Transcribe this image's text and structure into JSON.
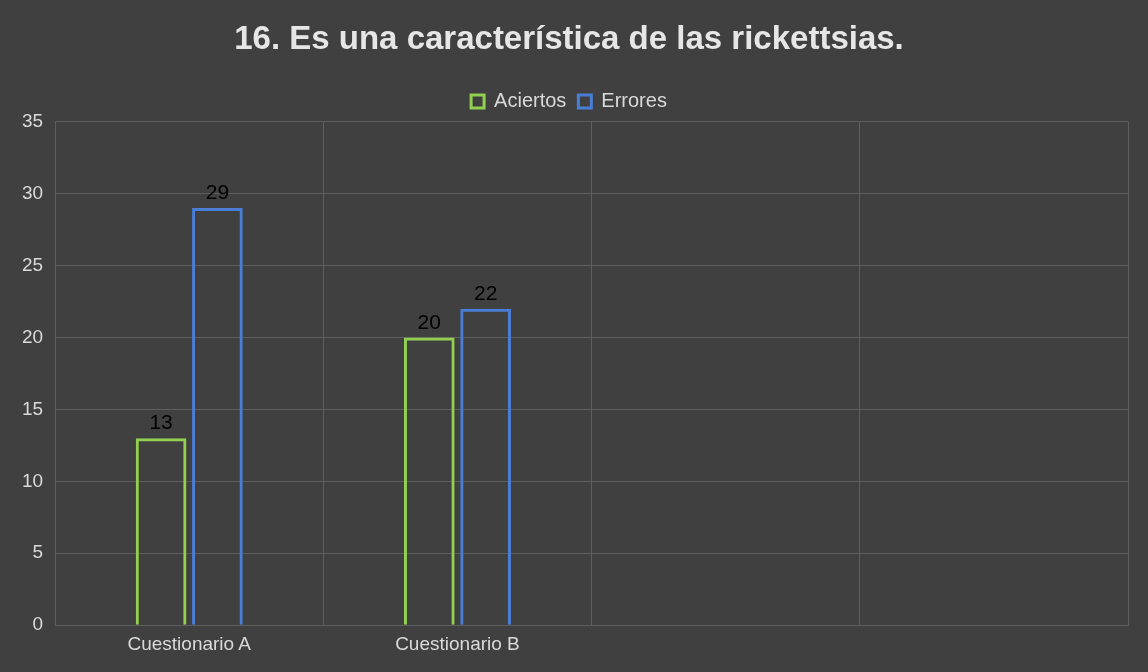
{
  "chart_data": {
    "type": "bar",
    "title": "16. Es una característica de las rickettsias.",
    "categories": [
      "Cuestionario A",
      "Cuestionario B",
      null,
      null
    ],
    "series": [
      {
        "name": "Aciertos",
        "color": "#92d050",
        "values": [
          13,
          20,
          null,
          null
        ]
      },
      {
        "name": "Errores",
        "color": "#4a7ed6",
        "values": [
          29,
          22,
          null,
          null
        ]
      }
    ],
    "ylim": [
      0,
      35
    ],
    "yticks": [
      0,
      5,
      10,
      15,
      20,
      25,
      30,
      35
    ],
    "grid": true,
    "legend": "top",
    "data_labels": true
  }
}
